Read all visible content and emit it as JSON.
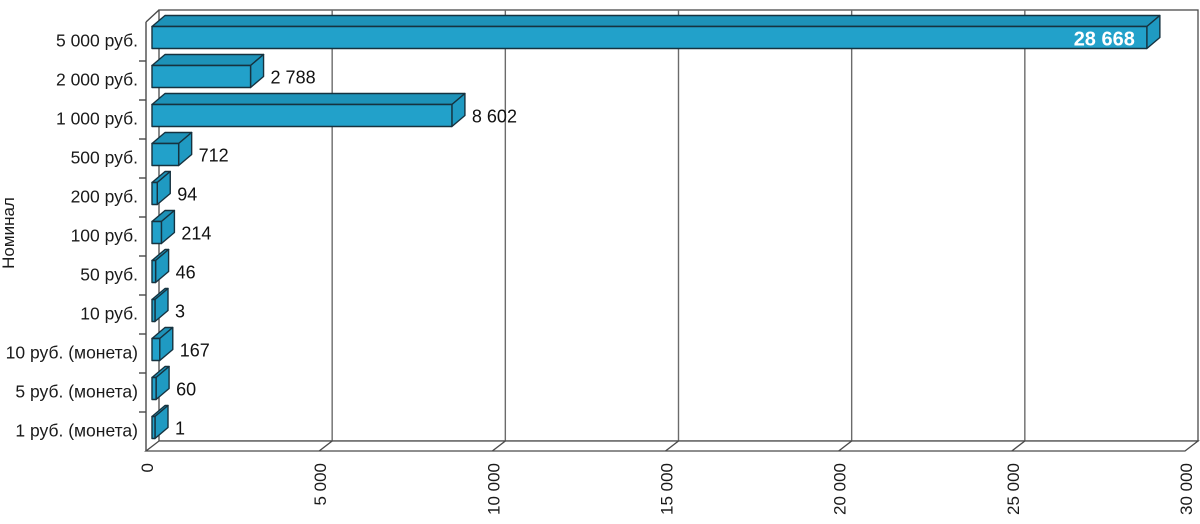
{
  "chart_data": {
    "type": "bar",
    "orientation": "horizontal",
    "style": "3d",
    "title": "",
    "xlabel": "",
    "ylabel": "Номинал",
    "categories": [
      "5 000 руб.",
      "2 000 руб.",
      "1 000 руб.",
      "500 руб.",
      "200 руб.",
      "100 руб.",
      "50 руб.",
      "10 руб.",
      "10 руб. (монета)",
      "5 руб. (монета)",
      "1 руб. (монета)"
    ],
    "values": [
      28668,
      2788,
      8602,
      712,
      94,
      214,
      46,
      3,
      167,
      60,
      1
    ],
    "value_labels": [
      "28 668",
      "2 788",
      "8 602",
      "712",
      "94",
      "214",
      "46",
      "3",
      "167",
      "60",
      "1"
    ],
    "inside_value_label_index": 0,
    "xlim": [
      0,
      30000
    ],
    "x_tick_values": [
      0,
      5000,
      10000,
      15000,
      20000,
      25000,
      30000
    ],
    "x_tick_labels": [
      "0",
      "5 000",
      "10 000",
      "15 000",
      "20 000",
      "25 000",
      "30 000"
    ],
    "grid": true,
    "legend": false,
    "colors": {
      "bar_front": "#22a1ca",
      "bar_top": "#1d92b8",
      "bar_side": "#1f9ac2",
      "bar_outline": "#16323f",
      "grid_line": "#6b6b6b",
      "wall_line": "#4a4a4a",
      "value_label": "#111111",
      "value_label_inside": "#ffffff",
      "background": "#ffffff"
    }
  }
}
